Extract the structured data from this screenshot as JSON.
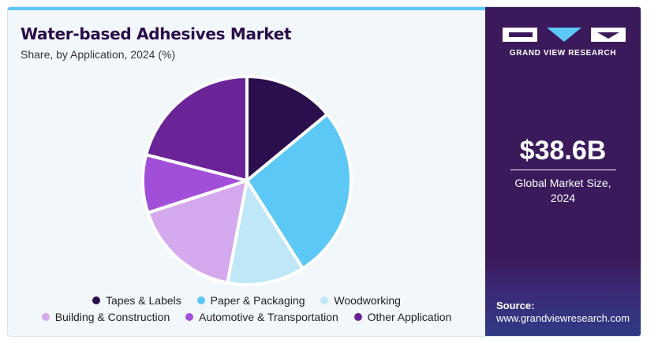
{
  "header": {
    "title": "Water-based Adhesives Market",
    "subtitle": "Share, by Application, 2024 (%)"
  },
  "chart_data": {
    "type": "pie",
    "title": "Water-based Adhesives Market",
    "subtitle": "Share, by Application, 2024 (%)",
    "categories": [
      "Tapes & Labels",
      "Paper & Packaging",
      "Woodworking",
      "Building & Construction",
      "Automotive & Transportation",
      "Other Application"
    ],
    "values": [
      14,
      27,
      12,
      17,
      9,
      21
    ],
    "colors": [
      "#2b0f4c",
      "#5bc8f5",
      "#bfe7f8",
      "#d4a9ee",
      "#a14fd8",
      "#6b2497"
    ],
    "legend_position": "bottom",
    "start_angle_deg": 0,
    "direction": "clockwise"
  },
  "legend": {
    "items": [
      {
        "label": "Tapes & Labels",
        "color": "#2b0f4c"
      },
      {
        "label": "Paper & Packaging",
        "color": "#5bc8f5"
      },
      {
        "label": "Woodworking",
        "color": "#bfe7f8"
      },
      {
        "label": "Building & Construction",
        "color": "#d4a9ee"
      },
      {
        "label": "Automotive & Transportation",
        "color": "#a14fd8"
      },
      {
        "label": "Other Application",
        "color": "#6b2497"
      }
    ]
  },
  "sidebar": {
    "brand": "GRAND VIEW RESEARCH",
    "market_value": "$38.6B",
    "market_caption_line1": "Global Market Size,",
    "market_caption_line2": "2024",
    "source_label": "Source:",
    "source_url": "www.grandviewresearch.com"
  }
}
